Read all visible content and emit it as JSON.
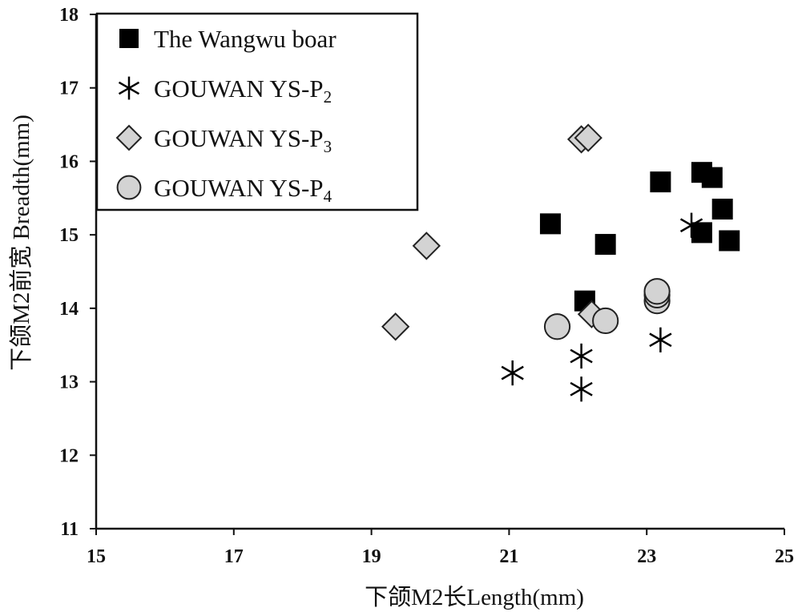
{
  "chart_data": {
    "type": "scatter",
    "xlabel": "下颌M2长Length(mm)",
    "ylabel": "下颌M2前宽 Breadth(mm)",
    "xlim": [
      15,
      25
    ],
    "ylim": [
      11,
      18
    ],
    "x_ticks": [
      "15",
      "17",
      "19",
      "21",
      "23",
      "25"
    ],
    "y_ticks": [
      "11",
      "12",
      "13",
      "14",
      "15",
      "16",
      "17",
      "18"
    ],
    "grid": false,
    "legend_position": "top-left",
    "series": [
      {
        "name": "The Wangwu boar",
        "subscript": "",
        "marker": "square",
        "color": "#000000",
        "points": [
          {
            "x": 21.6,
            "y": 15.15
          },
          {
            "x": 22.4,
            "y": 14.87
          },
          {
            "x": 22.1,
            "y": 14.1
          },
          {
            "x": 23.2,
            "y": 15.72
          },
          {
            "x": 23.8,
            "y": 15.85
          },
          {
            "x": 23.95,
            "y": 15.78
          },
          {
            "x": 24.1,
            "y": 15.35
          },
          {
            "x": 23.8,
            "y": 15.03
          },
          {
            "x": 24.2,
            "y": 14.92
          }
        ]
      },
      {
        "name": "GOUWAN YS-P",
        "subscript": "2",
        "marker": "asterisk",
        "color": "#000000",
        "points": [
          {
            "x": 21.05,
            "y": 13.12
          },
          {
            "x": 22.05,
            "y": 13.35
          },
          {
            "x": 22.05,
            "y": 12.9
          },
          {
            "x": 23.2,
            "y": 13.57
          },
          {
            "x": 23.65,
            "y": 15.13
          }
        ]
      },
      {
        "name": "GOUWAN YS-P",
        "subscript": "3",
        "marker": "diamond",
        "color": "#d3d3d3",
        "points": [
          {
            "x": 19.35,
            "y": 13.75
          },
          {
            "x": 19.8,
            "y": 14.85
          },
          {
            "x": 22.05,
            "y": 16.3
          },
          {
            "x": 22.15,
            "y": 16.32
          },
          {
            "x": 22.2,
            "y": 13.92
          }
        ]
      },
      {
        "name": "GOUWAN YS-P",
        "subscript": "4",
        "marker": "circle",
        "color": "#d3d3d3",
        "points": [
          {
            "x": 21.7,
            "y": 13.75
          },
          {
            "x": 22.4,
            "y": 13.83
          },
          {
            "x": 23.15,
            "y": 14.1
          },
          {
            "x": 23.15,
            "y": 14.18
          },
          {
            "x": 23.15,
            "y": 14.23
          }
        ]
      }
    ]
  }
}
